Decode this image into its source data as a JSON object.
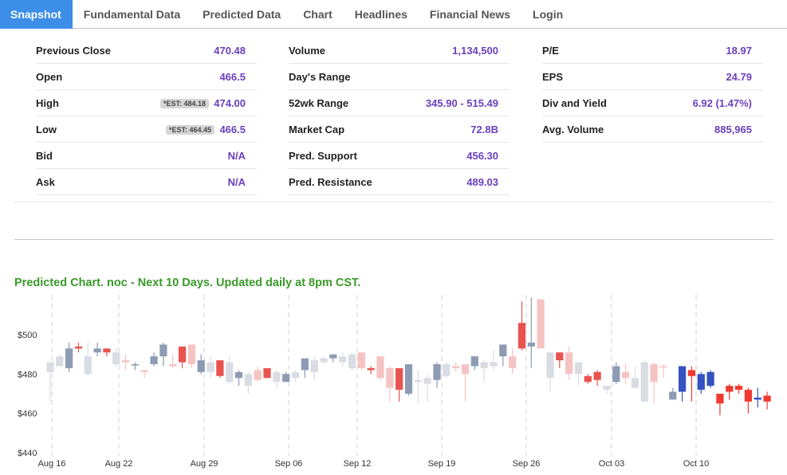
{
  "tabs": [
    "Snapshot",
    "Fundamental Data",
    "Predicted Data",
    "Chart",
    "Headlines",
    "Financial News",
    "Login"
  ],
  "stats": {
    "col1": [
      {
        "label": "Previous Close",
        "value": "470.48",
        "est": ""
      },
      {
        "label": "Open",
        "value": "466.5",
        "est": ""
      },
      {
        "label": "High",
        "value": "474.00",
        "est": "*EST: 484.18"
      },
      {
        "label": "Low",
        "value": "466.5",
        "est": "*EST: 464.45"
      },
      {
        "label": "Bid",
        "value": "N/A",
        "est": ""
      },
      {
        "label": "Ask",
        "value": "N/A",
        "est": ""
      }
    ],
    "col2": [
      {
        "label": "Volume",
        "value": "1,134,500"
      },
      {
        "label": "Day's Range",
        "value": ""
      },
      {
        "label": "52wk Range",
        "value": "345.90 - 515.49"
      },
      {
        "label": "Market Cap",
        "value": "72.8B"
      },
      {
        "label": "Pred. Support",
        "value": "456.30"
      },
      {
        "label": "Pred. Resistance",
        "value": "489.03"
      }
    ],
    "col3": [
      {
        "label": "P/E",
        "value": "18.97"
      },
      {
        "label": "EPS",
        "value": "24.79"
      },
      {
        "label": "Div and Yield",
        "value": "6.92 (1.47%)"
      },
      {
        "label": "Avg. Volume",
        "value": "885,965"
      }
    ]
  },
  "chart_title": "Predicted Chart. noc - Next 10 Days. Updated daily at 8pm CST.",
  "colors": {
    "accent": "#3d8ee8",
    "value_text": "#6a3fbf",
    "title_green": "#3a9a2a",
    "gray_up": "#8d9bb3",
    "light_up": "#d9dce3",
    "red_down": "#e8534f",
    "pink_down": "#f5c4c2",
    "pred_blue": "#3452c0",
    "pred_red": "#f03a30"
  },
  "chart_data": {
    "type": "candlestick",
    "ylim": [
      440,
      520
    ],
    "yticks": [
      440,
      460,
      480,
      500
    ],
    "ytick_labels": [
      "$440",
      "$460",
      "$480",
      "$500"
    ],
    "xticks": [
      "Aug 16",
      "Aug 22",
      "Aug 29",
      "Sep 06",
      "Sep 12",
      "Sep 19",
      "Sep 26",
      "Oct 03",
      "Oct 10"
    ],
    "grid": "vertical dashed",
    "series": [
      {
        "values": [
          {
            "o": 481,
            "c": 486,
            "h": 486,
            "l": 466,
            "col": "light_up"
          },
          {
            "o": 484,
            "c": 489,
            "h": 490,
            "l": 484,
            "col": "light_up"
          },
          {
            "o": 483,
            "c": 493,
            "h": 496,
            "l": 481,
            "col": "gray_up"
          },
          {
            "o": 493,
            "c": 494,
            "h": 496,
            "l": 491,
            "col": "red_down"
          },
          {
            "o": 480,
            "c": 489,
            "h": 496,
            "l": 479,
            "col": "light_up"
          },
          {
            "o": 491,
            "c": 493,
            "h": 496,
            "l": 489,
            "col": "gray_up"
          },
          {
            "o": 493,
            "c": 491,
            "h": 493,
            "l": 489,
            "col": "red_down"
          },
          {
            "o": 485,
            "c": 491,
            "h": 493,
            "l": 484,
            "col": "light_up"
          },
          {
            "o": 487,
            "c": 486,
            "h": 490,
            "l": 482,
            "col": "pink_down"
          },
          {
            "o": 485,
            "c": 485,
            "h": 486,
            "l": 482,
            "col": "gray_up"
          },
          {
            "o": 482,
            "c": 481,
            "h": 482,
            "l": 478,
            "col": "pink_down"
          },
          {
            "o": 485,
            "c": 489,
            "h": 491,
            "l": 484,
            "col": "gray_up"
          },
          {
            "o": 489,
            "c": 495,
            "h": 496,
            "l": 484,
            "col": "gray_up"
          },
          {
            "o": 485,
            "c": 484,
            "h": 490,
            "l": 483,
            "col": "pink_down"
          },
          {
            "o": 494,
            "c": 486,
            "h": 494,
            "l": 483,
            "col": "red_down"
          },
          {
            "o": 495,
            "c": 485,
            "h": 495,
            "l": 483,
            "col": "pink_down"
          },
          {
            "o": 481,
            "c": 487,
            "h": 490,
            "l": 480,
            "col": "gray_up"
          },
          {
            "o": 481,
            "c": 486,
            "h": 489,
            "l": 478,
            "col": "light_up"
          },
          {
            "o": 487,
            "c": 479,
            "h": 487,
            "l": 478,
            "col": "red_down"
          },
          {
            "o": 476,
            "c": 486,
            "h": 489,
            "l": 475,
            "col": "light_up"
          },
          {
            "o": 478,
            "c": 481,
            "h": 482,
            "l": 474,
            "col": "gray_up"
          },
          {
            "o": 474,
            "c": 480,
            "h": 481,
            "l": 470,
            "col": "light_up"
          },
          {
            "o": 482,
            "c": 477,
            "h": 484,
            "l": 476,
            "col": "pink_down"
          },
          {
            "o": 483,
            "c": 478,
            "h": 483,
            "l": 478,
            "col": "red_down"
          },
          {
            "o": 476,
            "c": 481,
            "h": 482,
            "l": 473,
            "col": "light_up"
          },
          {
            "o": 476,
            "c": 480,
            "h": 481,
            "l": 476,
            "col": "gray_up"
          },
          {
            "o": 478,
            "c": 481,
            "h": 482,
            "l": 476,
            "col": "light_up"
          },
          {
            "o": 482,
            "c": 488,
            "h": 488,
            "l": 478,
            "col": "gray_up"
          },
          {
            "o": 481,
            "c": 487,
            "h": 489,
            "l": 477,
            "col": "light_up"
          },
          {
            "o": 486,
            "c": 488,
            "h": 489,
            "l": 485,
            "col": "light_up"
          },
          {
            "o": 488,
            "c": 490,
            "h": 490,
            "l": 486,
            "col": "gray_up"
          },
          {
            "o": 486,
            "c": 489,
            "h": 491,
            "l": 484,
            "col": "light_up"
          },
          {
            "o": 483,
            "c": 490,
            "h": 491,
            "l": 482,
            "col": "light_up"
          },
          {
            "o": 491,
            "c": 483,
            "h": 491,
            "l": 482,
            "col": "pink_down"
          },
          {
            "o": 483,
            "c": 482,
            "h": 484,
            "l": 480,
            "col": "red_down"
          },
          {
            "o": 489,
            "c": 478,
            "h": 489,
            "l": 477,
            "col": "pink_down"
          },
          {
            "o": 483,
            "c": 473,
            "h": 484,
            "l": 466,
            "col": "pink_down"
          },
          {
            "o": 483,
            "c": 472,
            "h": 483,
            "l": 466,
            "col": "red_down"
          },
          {
            "o": 470,
            "c": 485,
            "h": 485,
            "l": 469,
            "col": "gray_up"
          },
          {
            "o": 476,
            "c": 477,
            "h": 482,
            "l": 465,
            "col": "light_up"
          },
          {
            "o": 475,
            "c": 478,
            "h": 480,
            "l": 466,
            "col": "light_up"
          },
          {
            "o": 477,
            "c": 485,
            "h": 486,
            "l": 473,
            "col": "gray_up"
          },
          {
            "o": 479,
            "c": 485,
            "h": 486,
            "l": 478,
            "col": "light_up"
          },
          {
            "o": 484,
            "c": 483,
            "h": 486,
            "l": 481,
            "col": "pink_down"
          },
          {
            "o": 485,
            "c": 480,
            "h": 485,
            "l": 466,
            "col": "pink_down"
          },
          {
            "o": 484,
            "c": 489,
            "h": 489,
            "l": 482,
            "col": "gray_up"
          },
          {
            "o": 483,
            "c": 486,
            "h": 487,
            "l": 476,
            "col": "light_up"
          },
          {
            "o": 486,
            "c": 484,
            "h": 492,
            "l": 482,
            "col": "light_up"
          },
          {
            "o": 489,
            "c": 495,
            "h": 495,
            "l": 484,
            "col": "gray_up"
          },
          {
            "o": 489,
            "c": 483,
            "h": 493,
            "l": 480,
            "col": "pink_down"
          },
          {
            "o": 506,
            "c": 493,
            "h": 517,
            "l": 492,
            "col": "red_down"
          },
          {
            "o": 496,
            "c": 494,
            "h": 519,
            "l": 483,
            "col": "gray_up"
          },
          {
            "o": 518,
            "c": 493,
            "h": 518,
            "l": 493,
            "col": "pink_down"
          },
          {
            "o": 478,
            "c": 491,
            "h": 491,
            "l": 471,
            "col": "light_up"
          },
          {
            "o": 491,
            "c": 487,
            "h": 491,
            "l": 483,
            "col": "red_down"
          },
          {
            "o": 491,
            "c": 480,
            "h": 494,
            "l": 477,
            "col": "pink_down"
          },
          {
            "o": 480,
            "c": 486,
            "h": 486,
            "l": 474,
            "col": "light_up"
          },
          {
            "o": 479,
            "c": 476,
            "h": 480,
            "l": 475,
            "col": "red_down"
          },
          {
            "o": 481,
            "c": 477,
            "h": 482,
            "l": 474,
            "col": "red_down"
          },
          {
            "o": 474,
            "c": 472,
            "h": 474,
            "l": 470,
            "col": "light_up"
          },
          {
            "o": 476,
            "c": 484,
            "h": 486,
            "l": 475,
            "col": "gray_up"
          },
          {
            "o": 481,
            "c": 478,
            "h": 485,
            "l": 475,
            "col": "pink_down"
          },
          {
            "o": 473,
            "c": 478,
            "h": 484,
            "l": 473,
            "col": "light_up"
          },
          {
            "o": 466,
            "c": 486,
            "h": 487,
            "l": 466,
            "col": "light_up"
          },
          {
            "o": 485,
            "c": 476,
            "h": 486,
            "l": 465,
            "col": "pink_down"
          },
          {
            "o": 484,
            "c": 484,
            "h": 485,
            "l": 478,
            "col": "pink_down"
          },
          {
            "o": 467,
            "c": 471,
            "h": 473,
            "l": 467,
            "col": "gray_up"
          },
          {
            "o": 471,
            "c": 484,
            "h": 484,
            "l": 466,
            "col": "pred_blue"
          },
          {
            "o": 482,
            "c": 479,
            "h": 484,
            "l": 466,
            "col": "pred_red"
          },
          {
            "o": 472,
            "c": 480,
            "h": 481,
            "l": 470,
            "col": "pred_blue"
          },
          {
            "o": 474,
            "c": 481,
            "h": 482,
            "l": 473,
            "col": "pred_blue"
          },
          {
            "o": 470,
            "c": 465,
            "h": 470,
            "l": 459,
            "col": "pred_red"
          },
          {
            "o": 474,
            "c": 471,
            "h": 475,
            "l": 467,
            "col": "pred_red"
          },
          {
            "o": 474,
            "c": 472,
            "h": 475,
            "l": 470,
            "col": "pred_red"
          },
          {
            "o": 472,
            "c": 466,
            "h": 473,
            "l": 460,
            "col": "pred_red"
          },
          {
            "o": 467,
            "c": 468,
            "h": 473,
            "l": 463,
            "col": "pred_blue"
          },
          {
            "o": 469,
            "c": 466,
            "h": 471,
            "l": 462,
            "col": "pred_red"
          }
        ]
      }
    ]
  }
}
